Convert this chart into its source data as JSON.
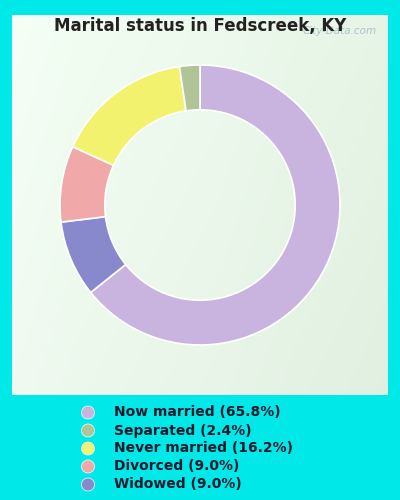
{
  "title": "Marital status in Fedscreek, KY",
  "slices": [
    65.8,
    2.4,
    16.2,
    9.0,
    9.0
  ],
  "labels": [
    "Now married (65.8%)",
    "Separated (2.4%)",
    "Never married (16.2%)",
    "Divorced (9.0%)",
    "Widowed (9.0%)"
  ],
  "colors": [
    "#c9b4e0",
    "#b0c498",
    "#f2f26e",
    "#f0a8a8",
    "#8888cc"
  ],
  "bg_outer": "#00e8e8",
  "bg_inner_tl": "#e8f4e8",
  "bg_inner_br": "#d0e8d8",
  "watermark": "City-Data.com",
  "title_fontsize": 12,
  "legend_fontsize": 10,
  "title_color": "#222222"
}
